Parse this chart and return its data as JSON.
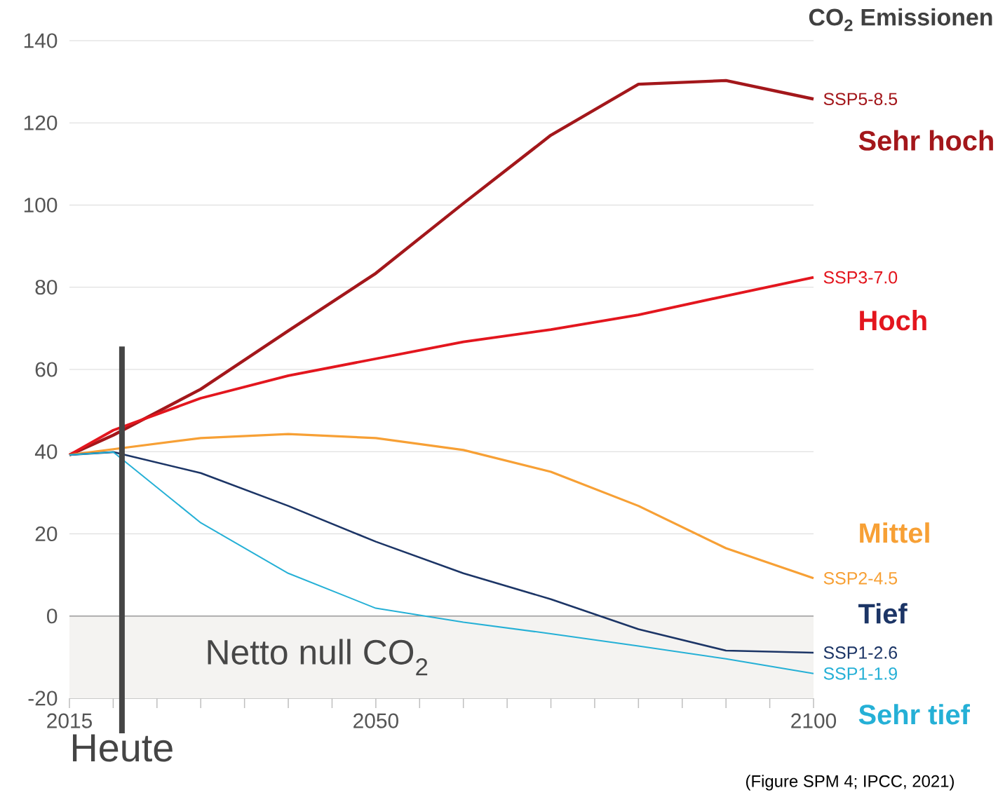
{
  "chart_data": {
    "type": "line",
    "title": "CO$_{2}$ Emissionen",
    "x": [
      2015,
      2020,
      2030,
      2040,
      2050,
      2060,
      2070,
      2080,
      2090,
      2100
    ],
    "series": [
      {
        "name": "SSP5-8.5",
        "color": "#a3171b",
        "values": [
          39.2,
          44,
          55.2,
          69.4,
          83.4,
          100.4,
          117,
          129.4,
          130.3,
          125.8
        ]
      },
      {
        "name": "SSP3-7.0",
        "color": "#e3161e",
        "values": [
          39.2,
          45.2,
          53,
          58.5,
          62.6,
          66.7,
          69.7,
          73.3,
          77.9,
          82.4
        ]
      },
      {
        "name": "SSP2-4.5",
        "color": "#f7a035",
        "values": [
          39.2,
          40.6,
          43.3,
          44.3,
          43.3,
          40.4,
          35.1,
          26.8,
          16.5,
          9.2
        ]
      },
      {
        "name": "SSP1-2.6",
        "color": "#1c3566",
        "values": [
          39.2,
          39.9,
          34.8,
          26.8,
          18.1,
          10.4,
          4.1,
          -3.2,
          -8.4,
          -8.9
        ]
      },
      {
        "name": "SSP1-1.9",
        "color": "#25b0d6",
        "values": [
          39.2,
          39.9,
          22.7,
          10.4,
          1.9,
          -1.5,
          -4.3,
          -7.3,
          -10.4,
          -14
        ]
      }
    ],
    "annotations": [
      "Sehr hoch",
      "Hoch",
      "Mittel",
      "Tief",
      "Sehr tief",
      "(Figure SPM 4; IPCC, 2021)"
    ],
    "xlim": [
      2015,
      2100
    ],
    "ylim": [
      -20,
      140
    ],
    "xticks": [
      2015,
      {
        "value": 2020,
        "label": null
      },
      {
        "value": 2025,
        "label": null
      },
      {
        "value": 2030,
        "label": null
      },
      {
        "value": 2035,
        "label": null
      },
      {
        "value": 2040,
        "label": null
      },
      {
        "value": 2045,
        "label": null
      },
      2050,
      {
        "value": 2055,
        "label": null
      },
      {
        "value": 2060,
        "label": null
      },
      {
        "value": 2065,
        "label": null
      },
      {
        "value": 2070,
        "label": null
      },
      {
        "value": 2075,
        "label": null
      },
      {
        "value": 2080,
        "label": null
      },
      {
        "value": 2085,
        "label": null
      },
      {
        "value": 2090,
        "label": null
      },
      {
        "value": 2095,
        "label": null
      },
      2100
    ],
    "yticks": [
      -20,
      0,
      20,
      40,
      60,
      80,
      100,
      120,
      140
    ],
    "grid": "y",
    "ref_lines": [
      {
        "axis": "x",
        "value": 2021,
        "label": "Heute",
        "color": "#454545"
      }
    ],
    "bands": [
      {
        "axis": "y",
        "from": -20,
        "to": 0,
        "label": "Netto null CO$_{2}$",
        "color": "#f4f3f1"
      }
    ]
  }
}
